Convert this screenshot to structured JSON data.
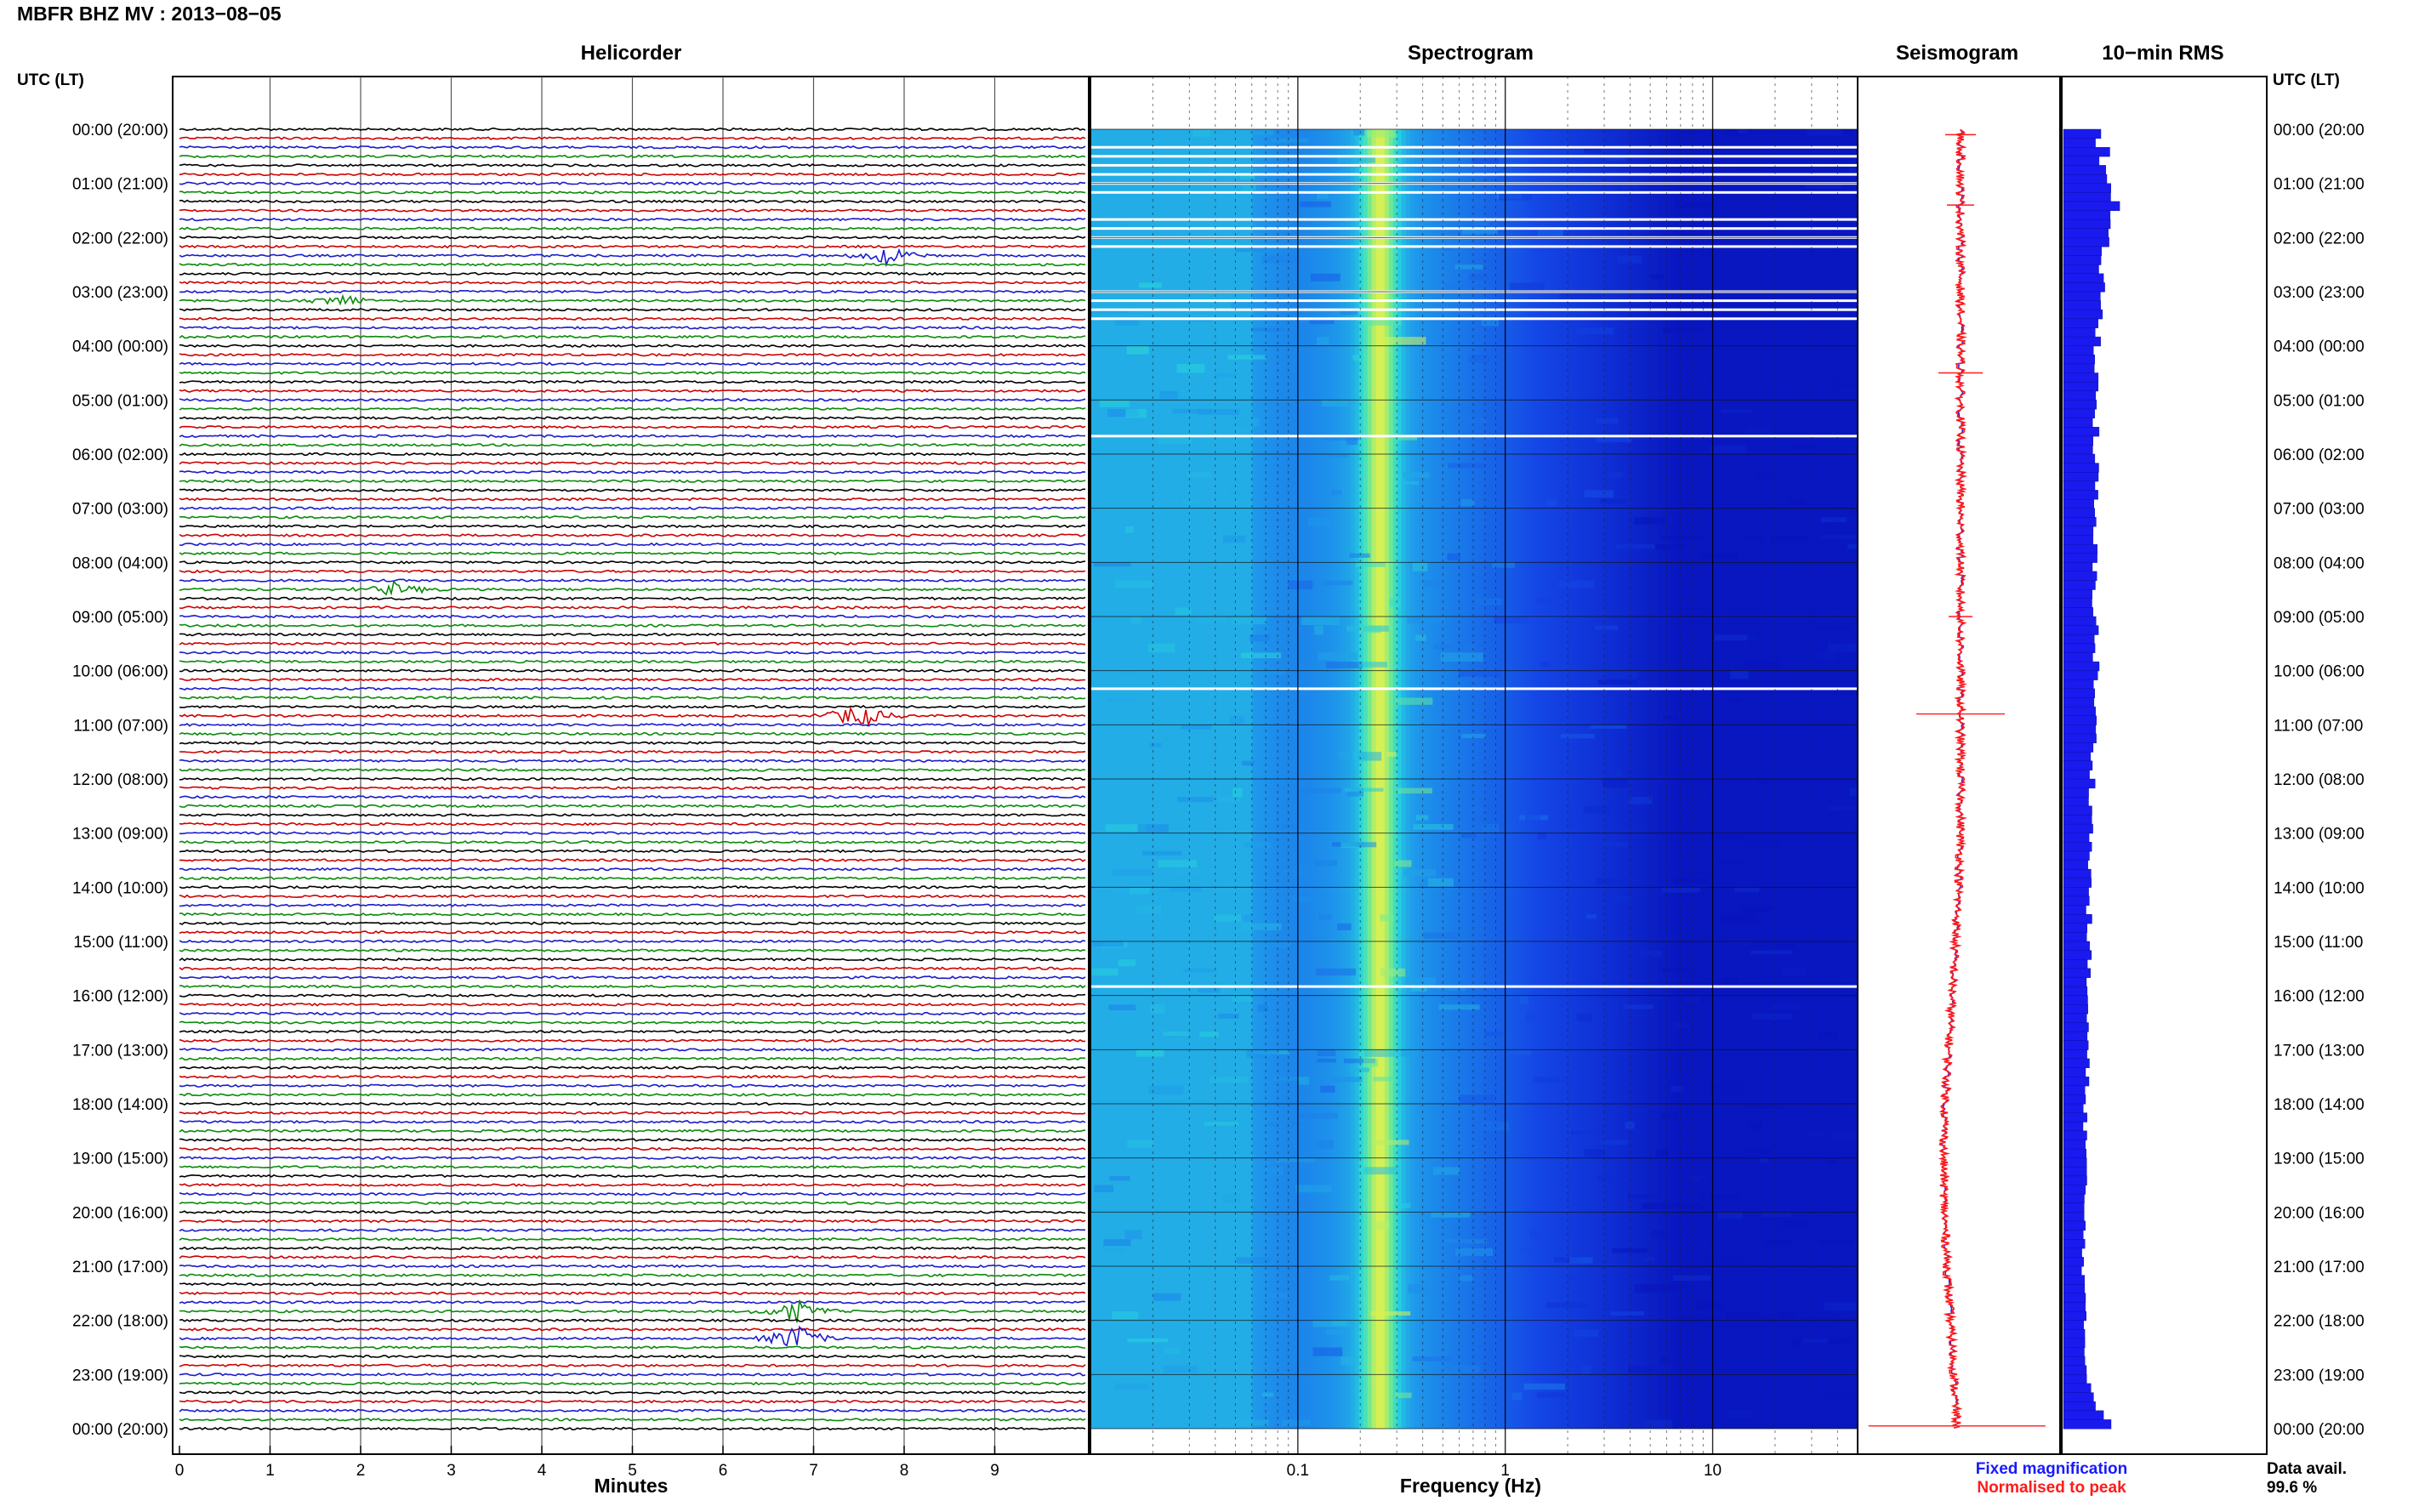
{
  "header": {
    "title": "MBFR BHZ MV : 2013−08−05"
  },
  "panels": {
    "helicorder": "Helicorder",
    "spectrogram": "Spectrogram",
    "seismogram": "Seismogram",
    "rms": "10−min RMS"
  },
  "utc_label_left": "UTC (LT)",
  "utc_label_right": "UTC (LT)",
  "legend": {
    "fixed": "Fixed magnification",
    "normalised": "Normalised to peak",
    "fixed_color": "#1a1aff",
    "normalised_color": "#ff1a1a"
  },
  "data_avail": {
    "label": "Data avail.",
    "value": "99.6 %"
  },
  "chart_data": [
    {
      "type": "line",
      "name": "helicorder",
      "title": "Helicorder",
      "xlabel": "Minutes",
      "x_ticks": [
        "0",
        "1",
        "2",
        "3",
        "4",
        "5",
        "6",
        "7",
        "8",
        "9"
      ],
      "xlim": [
        0,
        10
      ],
      "rows_per_hour": 6,
      "trace_colors": [
        "#000000",
        "#cc0000",
        "#1a1acc",
        "#0a8a0a"
      ],
      "time_labels": [
        "00:00 (20:00)",
        "01:00 (21:00)",
        "02:00 (22:00)",
        "03:00 (23:00)",
        "04:00 (00:00)",
        "05:00 (01:00)",
        "06:00 (02:00)",
        "07:00 (03:00)",
        "08:00 (04:00)",
        "09:00 (05:00)",
        "10:00 (06:00)",
        "11:00 (07:00)",
        "12:00 (08:00)",
        "13:00 (09:00)",
        "14:00 (10:00)",
        "15:00 (11:00)",
        "16:00 (12:00)",
        "17:00 (13:00)",
        "18:00 (14:00)",
        "19:00 (15:00)",
        "20:00 (16:00)",
        "21:00 (17:00)",
        "22:00 (18:00)",
        "23:00 (19:00)",
        "00:00 (20:00)"
      ],
      "events": [
        {
          "row": 14,
          "minute": 7.8,
          "amp": 1.8
        },
        {
          "row": 19,
          "minute": 1.8,
          "amp": 1.3
        },
        {
          "row": 51,
          "minute": 2.4,
          "amp": 1.5
        },
        {
          "row": 65,
          "minute": 7.5,
          "amp": 2.6
        },
        {
          "row": 131,
          "minute": 6.8,
          "amp": 2.2
        },
        {
          "row": 134,
          "minute": 6.8,
          "amp": 3.0
        }
      ]
    },
    {
      "type": "heatmap",
      "name": "spectrogram",
      "title": "Spectrogram",
      "xlabel": "Frequency (Hz)",
      "x_scale": "log",
      "xlim": [
        0.01,
        50
      ],
      "x_ticks": [
        "0.1",
        "1",
        "10"
      ],
      "peak_frequency_hz": 0.25,
      "gap_rows": [
        2,
        3,
        4,
        5,
        6,
        7,
        10,
        11,
        12,
        13,
        18,
        19,
        20,
        21,
        34,
        62,
        95
      ]
    },
    {
      "type": "line",
      "name": "seismogram",
      "title": "Seismogram",
      "offset_by_hour": [
        0,
        0,
        0,
        0,
        0,
        0,
        0,
        0,
        0,
        0,
        0,
        0,
        0,
        0,
        -0.2,
        -0.6,
        -1.0,
        -1.4,
        -1.8,
        -2.0,
        -1.9,
        -1.6,
        -1.2,
        -0.8,
        -0.4
      ]
    },
    {
      "type": "bar",
      "name": "rms",
      "title": "10−min RMS",
      "orientation": "horizontal",
      "color": "#1a1aee",
      "values_by_hour": [
        1.0,
        1.3,
        1.2,
        1.1,
        1.0,
        0.95,
        0.95,
        0.9,
        0.9,
        0.95,
        0.95,
        0.9,
        0.85,
        0.8,
        0.75,
        0.75,
        0.7,
        0.7,
        0.65,
        0.65,
        0.6,
        0.6,
        0.6,
        0.7,
        1.4
      ]
    }
  ]
}
